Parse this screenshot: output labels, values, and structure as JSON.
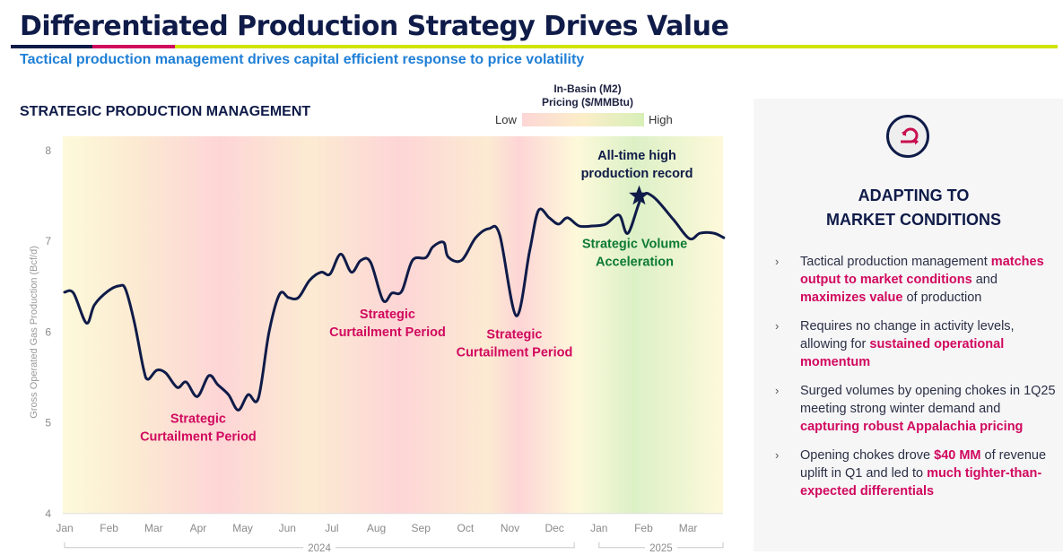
{
  "header": {
    "title": "Differentiated Production Strategy Drives Value",
    "subtitle": "Tactical production management drives capital efficient response to price volatility",
    "colors": {
      "navy": "#0f1b48",
      "pink": "#d1095e",
      "lime": "#d0e400",
      "subtitle_blue": "#1f7fd6"
    }
  },
  "legend": {
    "title_line1": "In-Basin (M2)",
    "title_line2": "Pricing ($/MMBtu)",
    "low_label": "Low",
    "high_label": "High",
    "colors": {
      "low": "#fdd6d6",
      "mid": "#fbeec9",
      "high": "#d8efb8"
    }
  },
  "chart_data": {
    "type": "line",
    "title": "STRATEGIC PRODUCTION MANAGEMENT",
    "xlabel": "",
    "ylabel": "Gross Operated Gas Production (Bcf/d)",
    "ylim": [
      4,
      8
    ],
    "yticks": [
      4,
      5,
      6,
      7,
      8
    ],
    "x_tick_labels": [
      "Jan",
      "Feb",
      "Mar",
      "Apr",
      "May",
      "Jun",
      "Jul",
      "Aug",
      "Sep",
      "Oct",
      "Nov",
      "Dec",
      "Jan",
      "Feb",
      "Mar"
    ],
    "x_groups": [
      {
        "label": "2024",
        "from_month": 0,
        "to_month": 11
      },
      {
        "label": "2025",
        "from_month": 12,
        "to_month": 14
      }
    ],
    "xlim_months": [
      0,
      14.75
    ],
    "grid": false,
    "line_color": "#0f1b48",
    "series": [
      {
        "name": "Gross Operated Gas Production",
        "x_months": [
          0,
          0.2,
          0.49,
          0.67,
          0.97,
          1.23,
          1.37,
          1.57,
          1.77,
          1.87,
          2.07,
          2.27,
          2.53,
          2.73,
          2.98,
          3.24,
          3.44,
          3.68,
          3.9,
          4.12,
          4.35,
          4.59,
          4.83,
          5.03,
          5.25,
          5.5,
          5.76,
          5.96,
          6.2,
          6.44,
          6.65,
          6.87,
          7.15,
          7.35,
          7.57,
          7.81,
          8.11,
          8.27,
          8.51,
          8.61,
          8.91,
          9.23,
          9.53,
          9.77,
          10.14,
          10.44,
          10.64,
          10.88,
          11.09,
          11.29,
          11.55,
          11.85,
          12.15,
          12.45,
          12.65,
          12.96,
          13.22,
          13.67,
          14.03,
          14.27,
          14.58,
          14.8
        ],
        "values": [
          6.44,
          6.43,
          6.1,
          6.3,
          6.45,
          6.51,
          6.47,
          6.1,
          5.6,
          5.48,
          5.58,
          5.55,
          5.39,
          5.45,
          5.29,
          5.52,
          5.42,
          5.31,
          5.14,
          5.31,
          5.27,
          6.0,
          6.42,
          6.38,
          6.38,
          6.57,
          6.66,
          6.64,
          6.86,
          6.66,
          6.79,
          6.77,
          6.35,
          6.43,
          6.45,
          6.79,
          6.82,
          6.94,
          6.99,
          6.83,
          6.79,
          7.04,
          7.14,
          7.07,
          6.18,
          6.89,
          7.34,
          7.26,
          7.19,
          7.26,
          7.17,
          7.17,
          7.19,
          7.29,
          7.09,
          7.49,
          7.49,
          7.24,
          7.03,
          7.09,
          7.09,
          7.04
        ]
      }
    ],
    "background_pricing_bands": [
      {
        "month": 0,
        "level": "mid-high"
      },
      {
        "month": 1.5,
        "level": "mid"
      },
      {
        "month": 3.5,
        "level": "low"
      },
      {
        "month": 5.5,
        "level": "mid"
      },
      {
        "month": 7.5,
        "level": "low"
      },
      {
        "month": 9.5,
        "level": "mid"
      },
      {
        "month": 10.2,
        "level": "low"
      },
      {
        "month": 11.5,
        "level": "mid-high"
      },
      {
        "month": 12.8,
        "level": "high"
      },
      {
        "month": 14.75,
        "level": "mid-high"
      }
    ],
    "annotations": [
      {
        "text_line1": "Strategic",
        "text_line2": "Curtailment Period",
        "month": 3.0,
        "value": 5.0,
        "color": "#d1095e"
      },
      {
        "text_line1": "Strategic",
        "text_line2": "Curtailment Period",
        "month": 7.25,
        "value": 6.15,
        "color": "#d1095e"
      },
      {
        "text_line1": "Strategic",
        "text_line2": "Curtailment Period",
        "month": 10.1,
        "value": 5.93,
        "color": "#d1095e"
      },
      {
        "text_line1": "Strategic Volume",
        "text_line2": "Acceleration",
        "month": 12.8,
        "value": 6.93,
        "color": "#0d7a33"
      },
      {
        "text_line1": "All-time high",
        "text_line2": "production record",
        "month": 12.85,
        "value": 7.9,
        "color": "#0f1b48"
      }
    ],
    "marker": {
      "type": "star",
      "month": 12.9,
      "value": 7.5,
      "label": "All-time high production record"
    }
  },
  "panel": {
    "icon": "adapt-cycle-arrow-icon",
    "heading_line1": "ADAPTING TO",
    "heading_line2": "MARKET CONDITIONS",
    "bullets": [
      [
        {
          "t": "Tactical production management "
        },
        {
          "t": "matches output to market conditions",
          "hl": true
        },
        {
          "t": " and "
        },
        {
          "t": "maximizes value",
          "hl": true
        },
        {
          "t": " of production"
        }
      ],
      [
        {
          "t": "Requires no change in activity levels, allowing for "
        },
        {
          "t": "sustained operational momentum",
          "hl": true
        }
      ],
      [
        {
          "t": "Surged volumes by opening chokes in 1Q25 meeting strong winter demand and "
        },
        {
          "t": "capturing robust Appalachia pricing",
          "hl": true
        }
      ],
      [
        {
          "t": "Opening chokes drove "
        },
        {
          "t": "$40 MM",
          "hl": true
        },
        {
          "t": " of revenue uplift in Q1 and led to "
        },
        {
          "t": "much tighter-than-expected differentials",
          "hl": true
        }
      ]
    ],
    "bullet_glyph": "›"
  }
}
